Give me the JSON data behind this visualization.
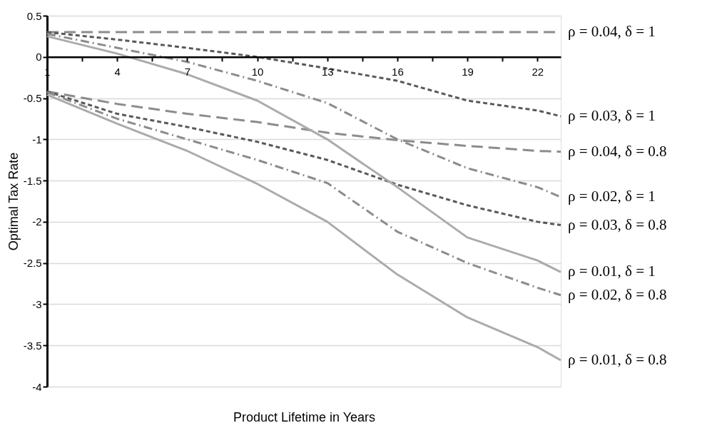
{
  "chart_data": {
    "type": "line",
    "xlabel": "Product Lifetime in Years",
    "ylabel": "Optimal Tax Rate",
    "x": [
      1,
      4,
      7,
      10,
      13,
      16,
      19,
      22,
      23
    ],
    "xlim": [
      1,
      23
    ],
    "ylim": [
      -4,
      0.5
    ],
    "xticks": [
      1,
      {
        "value": 2.5,
        "label": null
      },
      4,
      {
        "value": 5.5,
        "label": null
      },
      7,
      {
        "value": 8.5,
        "label": null
      },
      10,
      {
        "value": 11.5,
        "label": null
      },
      13,
      {
        "value": 14.5,
        "label": null
      },
      16,
      {
        "value": 17.5,
        "label": null
      },
      19,
      {
        "value": 20.5,
        "label": null
      },
      22
    ],
    "yticks": [
      0.5,
      0,
      -0.5,
      -1,
      -1.5,
      -2,
      -2.5,
      -3,
      -3.5,
      -4
    ],
    "grid": "y",
    "marker": "none",
    "series": [
      {
        "name": "ρ = 0.04, δ = 1",
        "color": "#8c8c8c",
        "line_style": "longdashed",
        "values": [
          0.3,
          0.3,
          0.3,
          0.3,
          0.3,
          0.3,
          0.3,
          0.3,
          0.3
        ]
      },
      {
        "name": "ρ = 0.03, δ = 1",
        "color": "#595959",
        "line_style": "dashed",
        "values": [
          0.3,
          0.21,
          0.11,
          0.0,
          -0.14,
          -0.29,
          -0.53,
          -0.65,
          -0.72
        ]
      },
      {
        "name": "ρ = 0.04, δ = 0.8",
        "color": "#8c8c8c",
        "line_style": "longdashed",
        "values": [
          -0.42,
          -0.57,
          -0.69,
          -0.79,
          -0.92,
          -1.01,
          -1.08,
          -1.14,
          -1.15
        ]
      },
      {
        "name": "ρ = 0.02, δ = 1",
        "color": "#8c8c8c",
        "line_style": "dashdot",
        "values": [
          0.28,
          0.11,
          -0.06,
          -0.29,
          -0.56,
          -1.0,
          -1.35,
          -1.58,
          -1.7
        ]
      },
      {
        "name": "ρ = 0.03, δ = 0.8",
        "color": "#595959",
        "line_style": "dashed",
        "values": [
          -0.42,
          -0.69,
          -0.85,
          -1.03,
          -1.25,
          -1.55,
          -1.8,
          -2.0,
          -2.04
        ]
      },
      {
        "name": "ρ = 0.01, δ = 1",
        "color": "#ababab",
        "line_style": "solid",
        "values": [
          0.25,
          0.04,
          -0.21,
          -0.53,
          -1.0,
          -1.58,
          -2.19,
          -2.47,
          -2.61
        ]
      },
      {
        "name": "ρ = 0.02, δ = 0.8",
        "color": "#8c8c8c",
        "line_style": "dashdot",
        "values": [
          -0.43,
          -0.75,
          -1.0,
          -1.25,
          -1.53,
          -2.12,
          -2.5,
          -2.8,
          -2.89
        ]
      },
      {
        "name": "ρ = 0.01, δ = 0.8",
        "color": "#ababab",
        "line_style": "solid",
        "values": [
          -0.46,
          -0.81,
          -1.14,
          -1.54,
          -2.0,
          -2.64,
          -3.16,
          -3.52,
          -3.68
        ]
      }
    ]
  }
}
